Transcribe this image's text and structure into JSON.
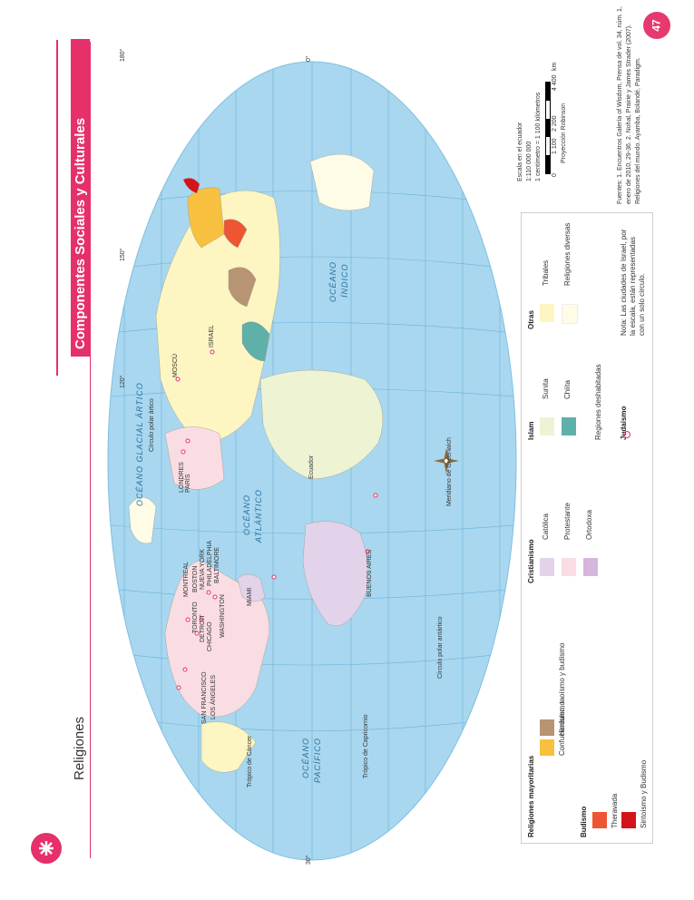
{
  "page": {
    "number": "47",
    "section_title": "Componentes Sociales y Culturales",
    "title": "Religiones"
  },
  "scale": {
    "heading": "Escala en el ecuador",
    "ratio": "1:110 000 000",
    "equivalence": "1 centímetro = 1 100 kilómetros",
    "ticks": [
      "0",
      "1 100",
      "2 200",
      "4 400"
    ],
    "unit": "km",
    "projection": "Proyección Robinson"
  },
  "source": {
    "line1": "Fuentes: 1. Encuentros Galería of Wisdom, Prensa de vol. 34, núm. 1,",
    "line2": "enero de 2010, 29-36. 2. Nohal, Prairie y James Strader (2007).",
    "line3": "Religiones del mundo. Ayamba, Bolandé, Paradigm."
  },
  "legend": {
    "groups": [
      {
        "heading": "Religiones mayoritarias",
        "items": [
          {
            "label": "Confucianismo, taoísmo y budismo",
            "color": "#f7c13f"
          },
          {
            "label": "Hinduismo",
            "color": "#b79474"
          }
        ]
      },
      {
        "heading": "Budismo",
        "items": [
          {
            "label": "Theravada",
            "color": "#ee5533"
          },
          {
            "label": "Sintoísmo y Budismo",
            "color": "#d4131b"
          }
        ]
      },
      {
        "heading": "Cristianismo",
        "items": [
          {
            "label": "Católica",
            "color": "#e3d3ea"
          },
          {
            "label": "Protestante",
            "color": "#f9dde2"
          },
          {
            "label": "Ortodoxa",
            "color": "#d5b6dd"
          }
        ]
      },
      {
        "heading": "Islam",
        "items": [
          {
            "label": "Sunita",
            "color": "#eef3d4"
          },
          {
            "label": "Chiíta",
            "color": "#5fb0a9"
          }
        ]
      },
      {
        "heading": "Otras",
        "items": [
          {
            "label": "Tribales",
            "color": "#fdf5c2"
          },
          {
            "label": "Religiones diversas",
            "color": "#fefbe6"
          }
        ]
      }
    ],
    "depopulated": "Regiones deshabitadas",
    "judaism": "Judaísmo",
    "note": "Nota: Las ciudades de Israel, por la escala, están representadas con un solo círculo."
  },
  "map": {
    "ocean_labels": [
      "OCÉANO GLACIAL ÁRTICO",
      "OCÉANO",
      "ATLÁNTICO",
      "OCÉANO",
      "PACÍFICO",
      "OCÉANO",
      "ÍNDICO"
    ],
    "lines": [
      "Trópico de Cáncer",
      "Círculo polar ártico",
      "Ecuador",
      "Trópico de Capricornio",
      "Círculo polar antártico",
      "Meridiano de Greenwich"
    ],
    "lat_marks": [
      "0°",
      "30°",
      "60°",
      "23°26'",
      "66°33'"
    ],
    "lon_marks": [
      "180°",
      "150°",
      "120°",
      "90°",
      "60°",
      "30°",
      "0°",
      "30°",
      "60°",
      "90°",
      "120°",
      "150°",
      "180°"
    ],
    "cities": [
      "SAN FRANCISCO",
      "LOS ÁNGELES",
      "MONTREAL",
      "TORONTO",
      "DETROIT",
      "CHICAGO",
      "BOSTON",
      "NUEVA YORK",
      "PHILADELPHIA",
      "BALTIMORE",
      "WASHINGTON",
      "MIAMI",
      "BUENOS AIRES",
      "LONDRES",
      "PARÍS",
      "MOSCÚ",
      "ISRAEL"
    ]
  },
  "colors": {
    "accent": "#e5306a",
    "ocean": "#a8d7ef",
    "land_base": "#fdf5c2"
  }
}
